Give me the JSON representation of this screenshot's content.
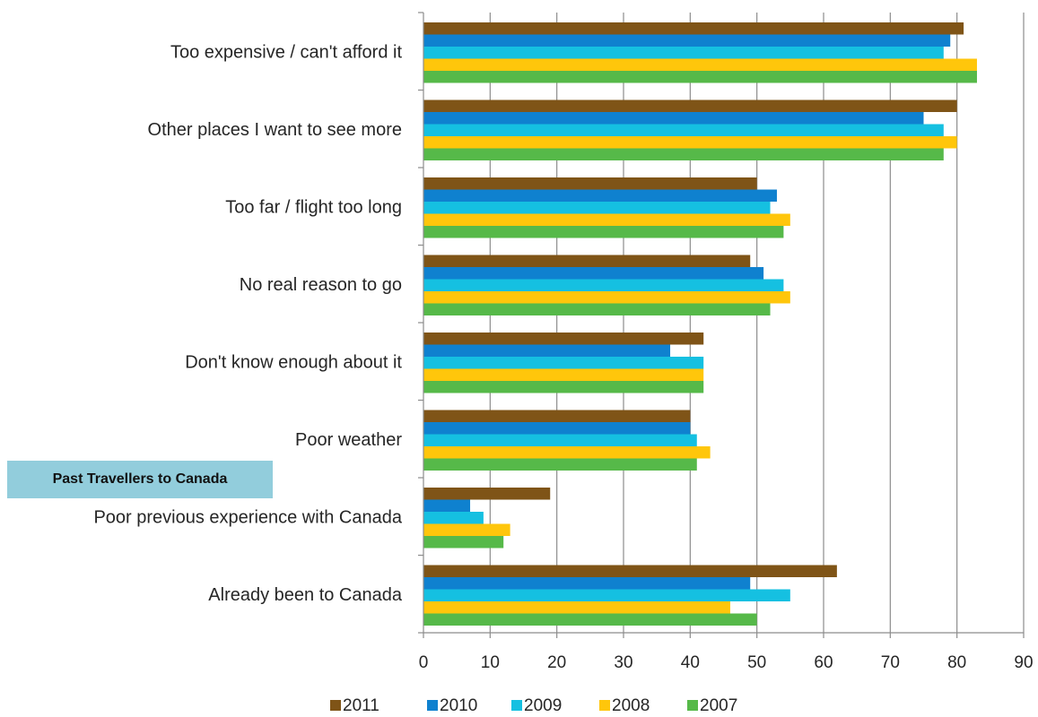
{
  "chart_data": {
    "type": "bar",
    "orientation": "horizontal",
    "categories": [
      "Too expensive / can't afford it",
      "Other places I want to see more",
      "Too far / flight too long",
      "No real reason to go",
      "Don't know enough about it",
      "Poor weather",
      "Poor previous experience with Canada",
      "Already been to Canada"
    ],
    "series": [
      {
        "name": "2011",
        "color": "#7f5417",
        "values": [
          81,
          80,
          50,
          49,
          42,
          40,
          19,
          62
        ]
      },
      {
        "name": "2010",
        "color": "#0f81cf",
        "values": [
          79,
          75,
          53,
          51,
          37,
          40,
          7,
          49
        ]
      },
      {
        "name": "2009",
        "color": "#15c0e1",
        "values": [
          78,
          78,
          52,
          54,
          42,
          41,
          9,
          55
        ]
      },
      {
        "name": "2008",
        "color": "#ffc60b",
        "values": [
          83,
          80,
          55,
          55,
          42,
          43,
          13,
          46
        ]
      },
      {
        "name": "2007",
        "color": "#56b949",
        "values": [
          83,
          78,
          54,
          52,
          42,
          41,
          12,
          50
        ]
      }
    ],
    "xlim": [
      0,
      90
    ],
    "xticks": [
      "0",
      "10",
      "20",
      "30",
      "40",
      "50",
      "60",
      "70",
      "80",
      "90"
    ],
    "grid": "vertical",
    "legend_position": "bottom",
    "title": "",
    "xlabel": "",
    "ylabel": ""
  },
  "annotation": {
    "text": "Past Travellers to Canada",
    "color": "#92cddc"
  }
}
